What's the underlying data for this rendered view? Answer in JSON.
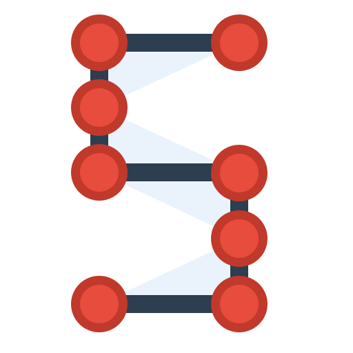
{
  "icon": {
    "name": "number-five-node-graph-icon",
    "colors": {
      "background": "#ffffff",
      "edge": "#2c3e50",
      "fill": "#eaf3fb",
      "node_outer": "#c0392b",
      "node_inner": "#e74c3c"
    }
  }
}
